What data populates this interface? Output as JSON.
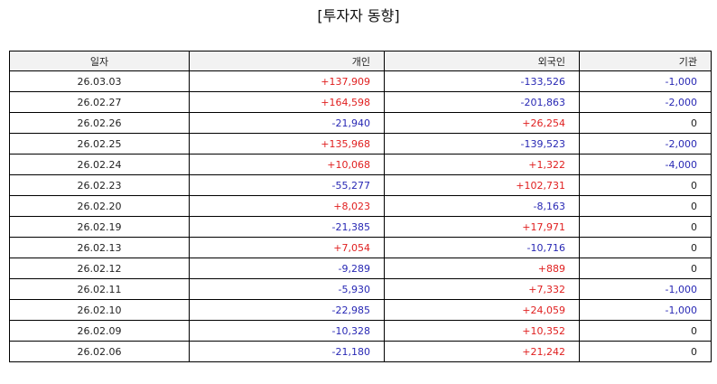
{
  "title": "[투자자 동향]",
  "colors": {
    "positive": "#e02020",
    "negative": "#2828b4",
    "zero": "#222222",
    "header_bg": "#f2f2f2"
  },
  "table": {
    "headers": [
      "일자",
      "개인",
      "외국인",
      "기관"
    ],
    "rows": [
      [
        "26.03.03",
        "+137,909",
        "-133,526",
        "-1,000"
      ],
      [
        "26.02.27",
        "+164,598",
        "-201,863",
        "-2,000"
      ],
      [
        "26.02.26",
        "-21,940",
        "+26,254",
        "0"
      ],
      [
        "26.02.25",
        "+135,968",
        "-139,523",
        "-2,000"
      ],
      [
        "26.02.24",
        "+10,068",
        "+1,322",
        "-4,000"
      ],
      [
        "26.02.23",
        "-55,277",
        "+102,731",
        "0"
      ],
      [
        "26.02.20",
        "+8,023",
        "-8,163",
        "0"
      ],
      [
        "26.02.19",
        "-21,385",
        "+17,971",
        "0"
      ],
      [
        "26.02.13",
        "+7,054",
        "-10,716",
        "0"
      ],
      [
        "26.02.12",
        "-9,289",
        "+889",
        "0"
      ],
      [
        "26.02.11",
        "-5,930",
        "+7,332",
        "-1,000"
      ],
      [
        "26.02.10",
        "-22,985",
        "+24,059",
        "-1,000"
      ],
      [
        "26.02.09",
        "-10,328",
        "+10,352",
        "0"
      ],
      [
        "26.02.06",
        "-21,180",
        "+21,242",
        "0"
      ]
    ]
  }
}
